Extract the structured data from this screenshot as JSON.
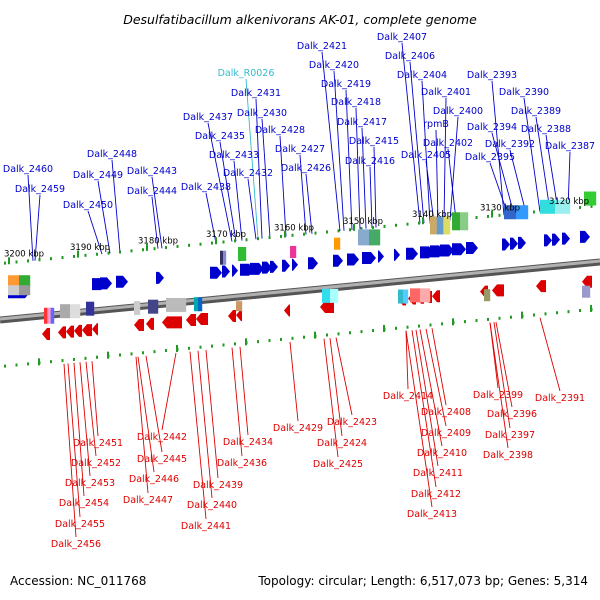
{
  "title": "Desulfatibacillum alkenivorans AK-01, complete genome",
  "footer": {
    "accession": "Accession: NC_011768",
    "topology": "Topology: circular; Length: 6,517,073 bp; Genes: 5,314"
  },
  "colors": {
    "forward": "#0000cc",
    "reverse": "#dd0000",
    "rna": "#33bbcc",
    "backbone": "#808080",
    "tick": "#229922"
  },
  "scale_labels": [
    "3200 kbp",
    "3190 kbp",
    "3180 kbp",
    "3170 kbp",
    "3160 kbp",
    "3150 kbp",
    "3140 kbp",
    "3130 kbp",
    "3120 kbp"
  ],
  "forward_genes": [
    "Dalk_2460",
    "Dalk_2459",
    "Dalk_2448",
    "Dalk_2449",
    "Dalk_2450",
    "Dalk_2443",
    "Dalk_2444",
    "Dalk_2437",
    "Dalk_2435",
    "Dalk_2433",
    "Dalk_2438",
    "Dalk_2432",
    "Dalk_2431",
    "Dalk_2430",
    "Dalk_2428",
    "Dalk_2427",
    "Dalk_2426",
    "Dalk_2421",
    "Dalk_2420",
    "Dalk_2419",
    "Dalk_2418",
    "Dalk_2417",
    "Dalk_2415",
    "Dalk_2416",
    "Dalk_2407",
    "Dalk_2406",
    "Dalk_2404",
    "Dalk_2401",
    "Dalk_2400",
    "rpmB",
    "Dalk_2402",
    "Dalk_2405",
    "Dalk_2393",
    "Dalk_2390",
    "Dalk_2389",
    "Dalk_2394",
    "Dalk_2388",
    "Dalk_2392",
    "Dalk_2395",
    "Dalk_2387"
  ],
  "rna_genes": [
    "Dalk_R0026"
  ],
  "reverse_genes": [
    "Dalk_2451",
    "Dalk_2452",
    "Dalk_2453",
    "Dalk_2454",
    "Dalk_2455",
    "Dalk_2456",
    "Dalk_2442",
    "Dalk_2445",
    "Dalk_2446",
    "Dalk_2447",
    "Dalk_2439",
    "Dalk_2440",
    "Dalk_2441",
    "Dalk_2434",
    "Dalk_2436",
    "Dalk_2429",
    "Dalk_2423",
    "Dalk_2424",
    "Dalk_2425",
    "Dalk_2414",
    "Dalk_2408",
    "Dalk_2409",
    "Dalk_2410",
    "Dalk_2411",
    "Dalk_2412",
    "Dalk_2413",
    "Dalk_2399",
    "Dalk_2396",
    "Dalk_2397",
    "Dalk_2398",
    "Dalk_2391"
  ]
}
